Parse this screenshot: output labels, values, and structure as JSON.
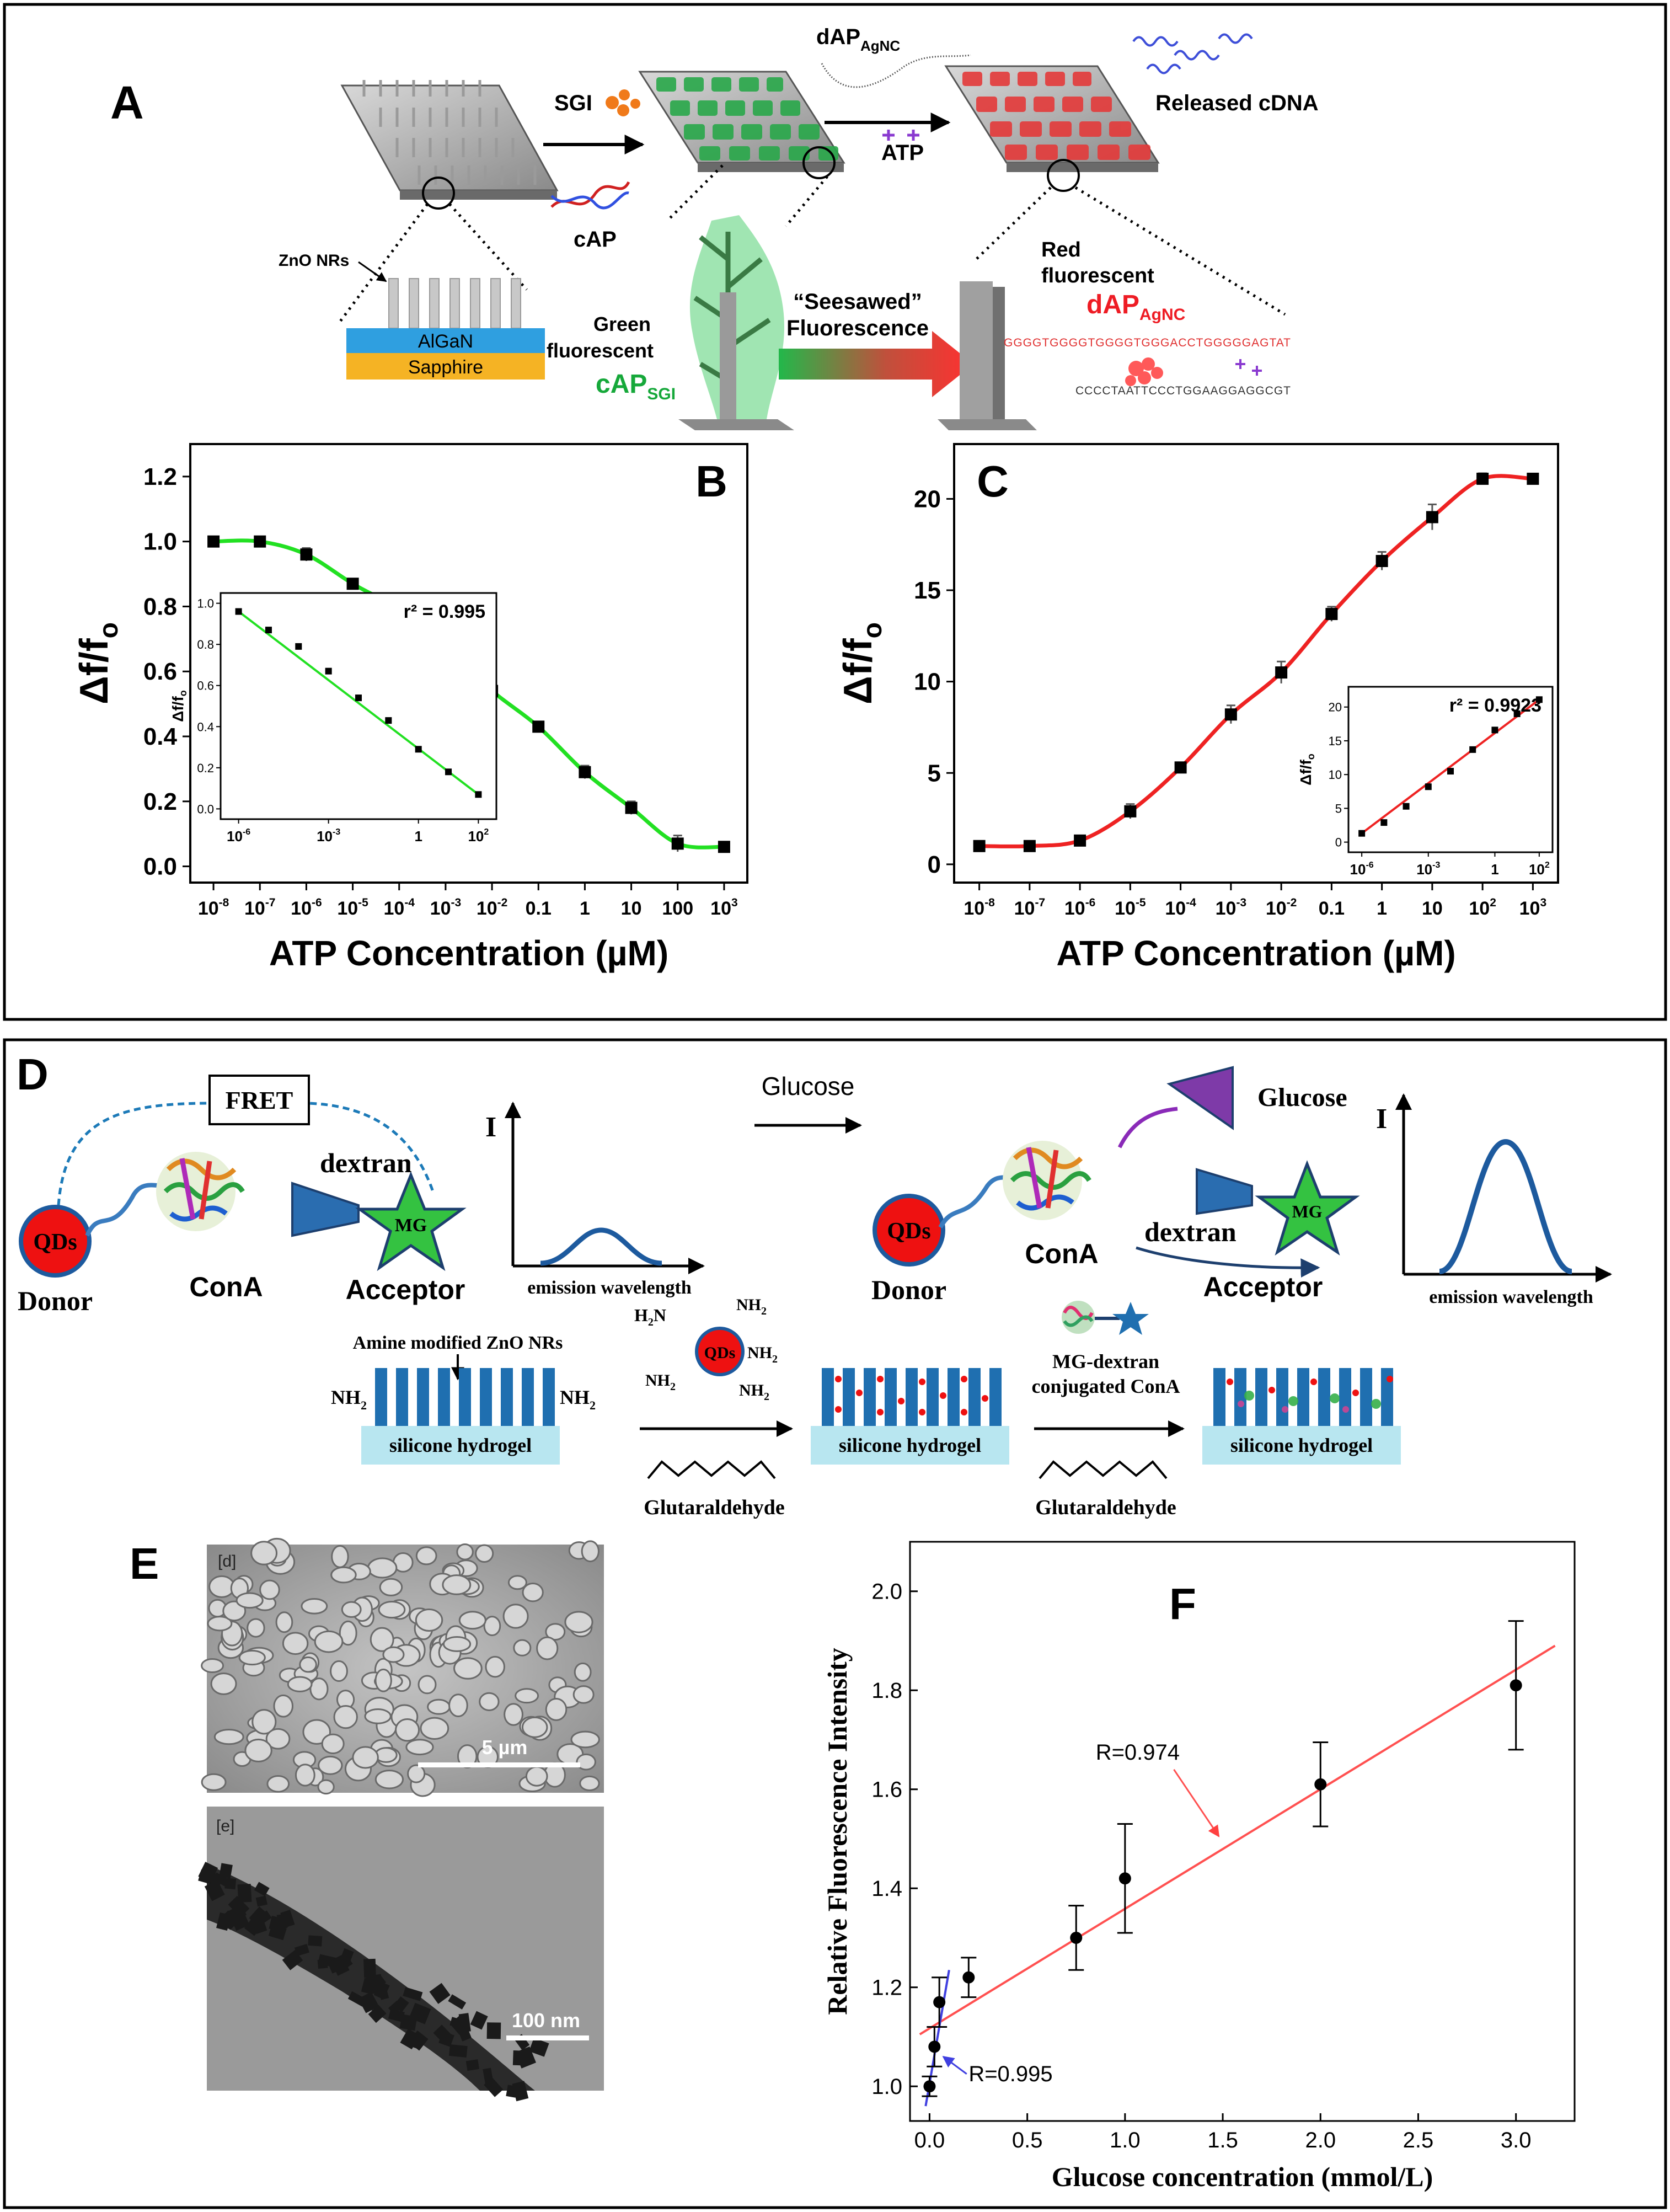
{
  "panel_labels": {
    "a": "A",
    "b": "B",
    "c": "C",
    "d": "D",
    "e": "E",
    "f": "F"
  },
  "schematic_a": {
    "zno_nrs": "ZnO NRs",
    "algan": "AlGaN",
    "sapphire": "Sapphire",
    "sgi": "SGI",
    "cap": "cAP",
    "dap_agnc_top_main": "dAP",
    "dap_agnc_top_sub": "AgNC",
    "atp": "ATP",
    "released_cdna": "Released cDNA",
    "green_fluorescent_1": "Green",
    "green_fluorescent_2": "fluorescent",
    "cap_sgi_main": "cAP",
    "cap_sgi_sub": "SGI",
    "seesawed_1": "“Seesawed”",
    "seesawed_2": "Fluorescence",
    "red_fluorescent_1": "Red",
    "red_fluorescent_2": "fluorescent",
    "dap_agnc_main": "dAP",
    "dap_agnc_sub": "AgNC",
    "dna_seq_top": "GGGGTGGGGTGGGGTGGGACCTGGGGGAGTAT",
    "dna_seq_top2": "dAPAgNC",
    "dna_seq_bottom": "CCCCTAATTCCCTGGAAGGAGGCGT"
  },
  "schematic_d": {
    "fret": "FRET",
    "qds": "QDs",
    "donor": "Donor",
    "cona": "ConA",
    "dextran": "dextran",
    "mg": "MG",
    "acceptor": "Acceptor",
    "i_axis": "I",
    "emission_wavelength": "emission wavelength",
    "glucose_arrow": "Glucose",
    "glucose_label": "Glucose",
    "amine_modified": "Amine modified ZnO NRs",
    "nh2": "NH",
    "nh2_sub": "2",
    "silicone_hydrogel": "silicone hydrogel",
    "glutaraldehyde": "Glutaraldehyde",
    "mg_dextran_1": "MG-dextran",
    "mg_dextran_2": "conjugated ConA",
    "h2n": "H",
    "h2n_sub": "2",
    "h2n_n": "N"
  },
  "micrographs_e": {
    "sem_tag": "[d]",
    "sem_scale": "5  µm",
    "tem_tag": "[e]",
    "tem_scale": "100 nm"
  },
  "chart_data": [
    {
      "id": "B",
      "type": "scatter",
      "title": "",
      "xlabel": "ATP Concentration (µM)",
      "ylabel": "Δf/f",
      "ylabel_sub": "o",
      "x_scale": "log",
      "xlim_exp": [
        -8,
        3
      ],
      "x_ticks_exp": [
        -8,
        -7,
        -6,
        -5,
        -4,
        -3,
        -2,
        -1,
        0,
        1,
        2,
        3
      ],
      "x_tick_labels": [
        "10",
        "10",
        "10",
        "10",
        "10",
        "10",
        "10",
        "0.1",
        "1",
        "10",
        "100",
        "10"
      ],
      "x_tick_sups": [
        "-8",
        "-7",
        "-6",
        "-5",
        "-4",
        "-3",
        "-2",
        "",
        "",
        "",
        "",
        "3"
      ],
      "ylim": [
        -0.05,
        1.3
      ],
      "y_ticks": [
        0.0,
        0.2,
        0.4,
        0.6,
        0.8,
        1.0,
        1.2
      ],
      "y_tick_labels": [
        "0.0",
        "0.2",
        "0.4",
        "0.6",
        "0.8",
        "1.0",
        "1.2"
      ],
      "line_color": "#22e022",
      "x": [
        "1e-8",
        "1e-7",
        "1e-6",
        "1e-5",
        "1e-4",
        "1e-3",
        "1e-2",
        "0.1",
        "1",
        "10",
        "100",
        "1000"
      ],
      "y": [
        1.0,
        1.0,
        0.96,
        0.87,
        0.79,
        0.67,
        0.54,
        0.43,
        0.29,
        0.18,
        0.07,
        0.06
      ],
      "err": [
        0.01,
        0.01,
        0.02,
        0.01,
        0.015,
        0.02,
        0.015,
        0.015,
        0.02,
        0.02,
        0.025,
        0.01
      ],
      "inset": {
        "annotation": "r² = 0.995",
        "ylabel": "Δf/f",
        "ylabel_sub": "o",
        "x_ticks_exp": [
          -6,
          -3,
          0,
          2
        ],
        "x_tick_labels": [
          "10",
          "10",
          "1",
          "10"
        ],
        "x_tick_sups": [
          "-6",
          "-3",
          "",
          "2"
        ],
        "ylim": [
          -0.05,
          1.05
        ],
        "y_ticks": [
          0.0,
          0.2,
          0.4,
          0.6,
          0.8,
          1.0
        ],
        "y_tick_labels": [
          "0.0",
          "0.2",
          "0.4",
          "0.6",
          "0.8",
          "1.0"
        ],
        "x_exp": [
          -6,
          -5,
          -4,
          -3,
          -2,
          -1,
          0,
          1,
          2
        ],
        "y": [
          0.96,
          0.87,
          0.79,
          0.67,
          0.54,
          0.43,
          0.29,
          0.18,
          0.07
        ]
      }
    },
    {
      "id": "C",
      "type": "scatter",
      "title": "",
      "xlabel": "ATP Concentration (µM)",
      "ylabel": "Δf/f",
      "ylabel_sub": "o",
      "x_scale": "log",
      "xlim_exp": [
        -8,
        3
      ],
      "x_ticks_exp": [
        -8,
        -7,
        -6,
        -5,
        -4,
        -3,
        -2,
        -1,
        0,
        1,
        2,
        3
      ],
      "x_tick_labels": [
        "10",
        "10",
        "10",
        "10",
        "10",
        "10",
        "10",
        "0.1",
        "1",
        "10",
        "10",
        "10"
      ],
      "x_tick_sups": [
        "-8",
        "-7",
        "-6",
        "-5",
        "-4",
        "-3",
        "-2",
        "",
        "",
        "",
        "2",
        "3"
      ],
      "ylim": [
        -1,
        23
      ],
      "y_ticks": [
        0,
        5,
        10,
        15,
        20
      ],
      "y_tick_labels": [
        "0",
        "5",
        "10",
        "15",
        "20"
      ],
      "line_color": "#ee2222",
      "x": [
        "1e-8",
        "1e-7",
        "1e-6",
        "1e-5",
        "1e-4",
        "1e-3",
        "1e-2",
        "0.1",
        "1",
        "10",
        "100",
        "1000"
      ],
      "y": [
        1.0,
        1.0,
        1.3,
        2.9,
        5.3,
        8.2,
        10.5,
        13.7,
        16.6,
        19.0,
        21.1,
        21.1
      ],
      "err": [
        0.1,
        0.1,
        0.2,
        0.4,
        0.2,
        0.5,
        0.6,
        0.4,
        0.5,
        0.7,
        0.3,
        0.2
      ],
      "inset": {
        "annotation": "r² = 0.9923",
        "ylabel": "Δf/f",
        "ylabel_sub": "o",
        "x_ticks_exp": [
          -6,
          -3,
          0,
          2
        ],
        "x_tick_labels": [
          "10",
          "10",
          "1",
          "10"
        ],
        "x_tick_sups": [
          "-6",
          "-3",
          "",
          "2"
        ],
        "ylim": [
          -1.5,
          23
        ],
        "y_ticks": [
          0,
          5,
          10,
          15,
          20
        ],
        "y_tick_labels": [
          "0",
          "5",
          "10",
          "15",
          "20"
        ],
        "x_exp": [
          -6,
          -5,
          -4,
          -3,
          -2,
          -1,
          0,
          1,
          2
        ],
        "y": [
          1.3,
          2.9,
          5.3,
          8.2,
          10.5,
          13.7,
          16.6,
          19.0,
          21.1
        ]
      }
    },
    {
      "id": "F",
      "type": "scatter",
      "title": "",
      "xlabel": "Glucose concentration (mmol/L)",
      "ylabel": "Relative Fluorescence Intensity",
      "xlim": [
        -0.1,
        3.3
      ],
      "ylim": [
        0.93,
        2.1
      ],
      "x_ticks": [
        0.0,
        0.5,
        1.0,
        1.5,
        2.0,
        2.5,
        3.0
      ],
      "x_tick_labels": [
        "0.0",
        "0.5",
        "1.0",
        "1.5",
        "2.0",
        "2.5",
        "3.0"
      ],
      "y_ticks": [
        1.0,
        1.2,
        1.4,
        1.6,
        1.8,
        2.0
      ],
      "y_tick_labels": [
        "1.0",
        "1.2",
        "1.4",
        "1.6",
        "1.8",
        "2.0"
      ],
      "x": [
        0.0,
        0.025,
        0.05,
        0.2,
        0.75,
        1.0,
        2.0,
        3.0
      ],
      "y": [
        1.0,
        1.08,
        1.17,
        1.22,
        1.3,
        1.42,
        1.61,
        1.81
      ],
      "err": [
        0.02,
        0.04,
        0.05,
        0.04,
        0.065,
        0.11,
        0.085,
        0.13
      ],
      "fits": [
        {
          "label": "R=0.974",
          "color": "#ff5050",
          "x": [
            -0.05,
            3.2
          ],
          "y": [
            1.105,
            1.89
          ]
        },
        {
          "label": "R=0.995",
          "color": "#4040e0",
          "x": [
            -0.02,
            0.1
          ],
          "y": [
            0.96,
            1.235
          ]
        }
      ]
    }
  ]
}
